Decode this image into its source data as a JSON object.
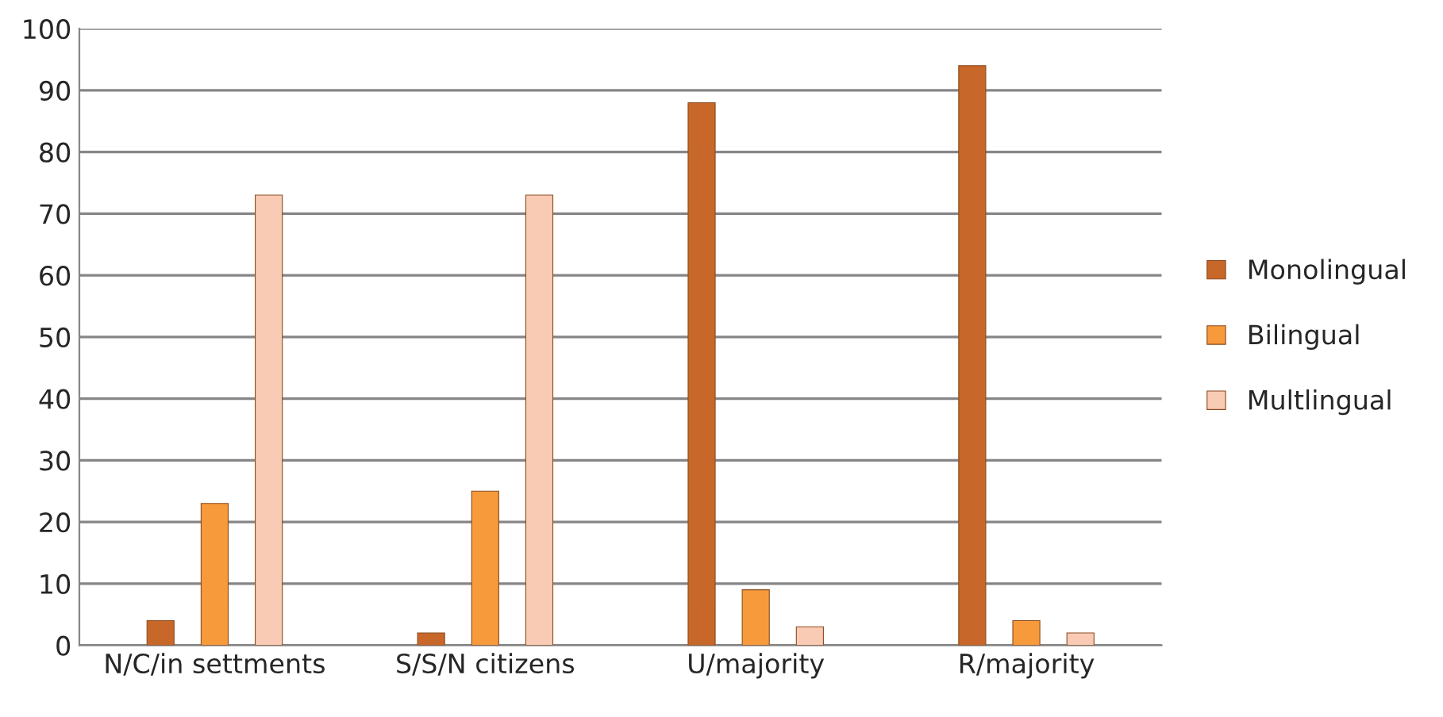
{
  "chart_data": {
    "type": "bar",
    "categories": [
      "N/C/in settments",
      "S/S/N citizens",
      "U/majority",
      "R/majority"
    ],
    "series": [
      {
        "name": "Monolingual",
        "color": "#c8672a",
        "values": [
          4,
          2,
          88,
          94
        ]
      },
      {
        "name": "Bilingual",
        "color": "#f79a3b",
        "values": [
          23,
          25,
          9,
          4
        ]
      },
      {
        "name": "Multlingual",
        "color": "#f9cbb5",
        "values": [
          73,
          73,
          3,
          2
        ]
      }
    ],
    "ylim": [
      0,
      100
    ],
    "yticks": [
      0,
      10,
      20,
      30,
      40,
      50,
      60,
      70,
      80,
      90,
      100
    ],
    "grid": "y",
    "legend": "right"
  }
}
